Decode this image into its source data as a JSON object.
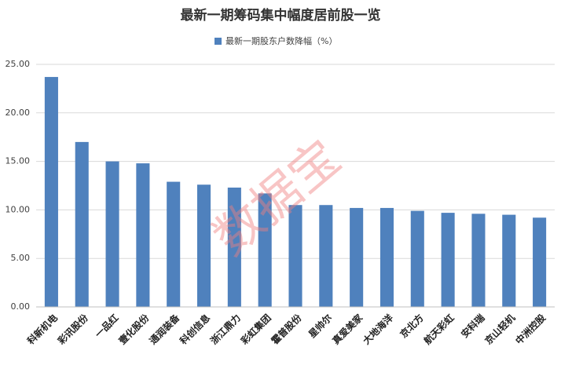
{
  "chart_data": {
    "type": "bar",
    "title": "最新一期筹码集中幅度居前股一览",
    "watermark": "数据宝",
    "categories": [
      "科新机电",
      "彩讯股份",
      "一品红",
      "壹化股份",
      "通润装备",
      "科创信息",
      "浙江鼎力",
      "彩虹集团",
      "霍普股份",
      "星帅尔",
      "真爱美家",
      "大地海洋",
      "京北方",
      "航天彩虹",
      "安科瑞",
      "京山轻机",
      "中洲控股"
    ],
    "series": [
      {
        "name": "最新一期股东户数降幅（%）",
        "color": "#4f81bd",
        "values": [
          23.7,
          17.0,
          15.0,
          14.8,
          12.9,
          12.6,
          12.3,
          11.7,
          10.5,
          10.5,
          10.2,
          10.2,
          9.9,
          9.7,
          9.6,
          9.5,
          9.2
        ]
      }
    ],
    "ylim": [
      0,
      25
    ],
    "yticks": [
      {
        "value": 0,
        "label": "0.00"
      },
      {
        "value": 5,
        "label": "5.00"
      },
      {
        "value": 10,
        "label": "10.00"
      },
      {
        "value": 15,
        "label": "15.00"
      },
      {
        "value": 20,
        "label": "20.00"
      },
      {
        "value": 25,
        "label": "25.00"
      }
    ],
    "grid": true
  }
}
